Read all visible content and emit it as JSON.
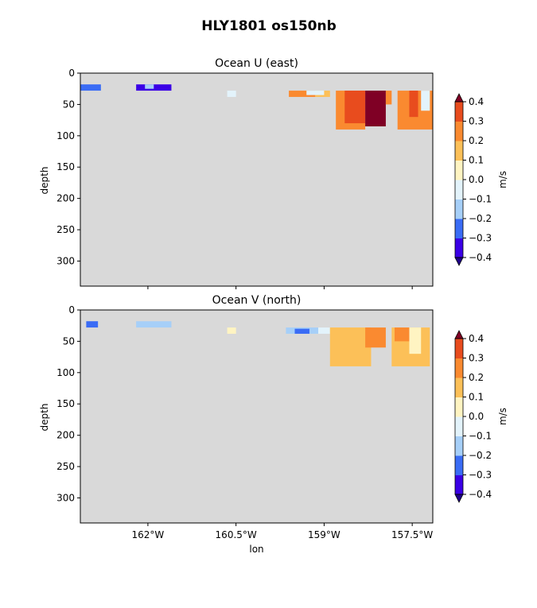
{
  "figure": {
    "title": "HLY1801 os150nb"
  },
  "chart_data": [
    {
      "type": "heatmap",
      "title": "Ocean U (east)",
      "xlabel": "",
      "ylabel": "depth",
      "xlim": [
        -163.15,
        -157.15
      ],
      "ylim": [
        340,
        0
      ],
      "yticks": [
        0,
        50,
        100,
        150,
        200,
        250,
        300
      ],
      "xticks": [
        -162.0,
        -160.5,
        -159.0,
        -157.5
      ],
      "xtick_labels": [
        "",
        "",
        "",
        ""
      ],
      "background_color": "#d9d9d9",
      "colorbar": {
        "label": "m/s",
        "levels": [
          -0.4,
          -0.3,
          -0.2,
          -0.1,
          0.0,
          0.1,
          0.2,
          0.3,
          0.4
        ],
        "tick_labels": [
          "−0.4",
          "−0.3",
          "−0.2",
          "−0.1",
          "0.0",
          "0.1",
          "0.2",
          "0.3",
          "0.4"
        ],
        "colors": [
          "#3a00e6",
          "#3a6cf5",
          "#a6cff8",
          "#e3f3fb",
          "#fff4c2",
          "#fcc058",
          "#fa8a30",
          "#e84c1e"
        ],
        "under_color": "#1f0089",
        "over_color": "#7f0025"
      },
      "regions": [
        {
          "value": -0.25,
          "lon": [
            -163.15,
            -162.8
          ],
          "depth": [
            18,
            28
          ]
        },
        {
          "value": -0.35,
          "lon": [
            -162.2,
            -161.6
          ],
          "depth": [
            18,
            28
          ]
        },
        {
          "value": -0.15,
          "lon": [
            -162.05,
            -161.9
          ],
          "depth": [
            18,
            25
          ]
        },
        {
          "value": -0.05,
          "lon": [
            -160.65,
            -160.5
          ],
          "depth": [
            28,
            38
          ]
        },
        {
          "value": 0.25,
          "lon": [
            -159.6,
            -159.15
          ],
          "depth": [
            28,
            38
          ]
        },
        {
          "value": 0.15,
          "lon": [
            -159.15,
            -158.9
          ],
          "depth": [
            28,
            38
          ]
        },
        {
          "value": -0.05,
          "lon": [
            -159.3,
            -159.0
          ],
          "depth": [
            28,
            35
          ]
        },
        {
          "value": 0.25,
          "lon": [
            -158.8,
            -158.3
          ],
          "depth": [
            28,
            90
          ]
        },
        {
          "value": 0.35,
          "lon": [
            -158.65,
            -158.3
          ],
          "depth": [
            28,
            80
          ]
        },
        {
          "value": 0.45,
          "lon": [
            -158.3,
            -157.95
          ],
          "depth": [
            28,
            85
          ]
        },
        {
          "value": 0.25,
          "lon": [
            -157.95,
            -157.85
          ],
          "depth": [
            28,
            50
          ]
        },
        {
          "value": 0.25,
          "lon": [
            -157.75,
            -157.15
          ],
          "depth": [
            28,
            90
          ]
        },
        {
          "value": 0.35,
          "lon": [
            -157.55,
            -157.4
          ],
          "depth": [
            28,
            70
          ]
        },
        {
          "value": -0.05,
          "lon": [
            -157.35,
            -157.2
          ],
          "depth": [
            28,
            60
          ]
        }
      ]
    },
    {
      "type": "heatmap",
      "title": "Ocean V (north)",
      "xlabel": "lon",
      "ylabel": "depth",
      "xlim": [
        -163.15,
        -157.15
      ],
      "ylim": [
        340,
        0
      ],
      "yticks": [
        0,
        50,
        100,
        150,
        200,
        250,
        300
      ],
      "xticks": [
        -162.0,
        -160.5,
        -159.0,
        -157.5
      ],
      "xtick_labels": [
        "162°W",
        "160.5°W",
        "159°W",
        "157.5°W"
      ],
      "background_color": "#d9d9d9",
      "colorbar": {
        "label": "m/s",
        "levels": [
          -0.4,
          -0.3,
          -0.2,
          -0.1,
          0.0,
          0.1,
          0.2,
          0.3,
          0.4
        ],
        "tick_labels": [
          "−0.4",
          "−0.3",
          "−0.2",
          "−0.1",
          "0.0",
          "0.1",
          "0.2",
          "0.3",
          "0.4"
        ],
        "colors": [
          "#3a00e6",
          "#3a6cf5",
          "#a6cff8",
          "#e3f3fb",
          "#fff4c2",
          "#fcc058",
          "#fa8a30",
          "#e84c1e"
        ],
        "under_color": "#1f0089",
        "over_color": "#7f0025"
      },
      "regions": [
        {
          "value": -0.25,
          "lon": [
            -163.05,
            -162.85
          ],
          "depth": [
            18,
            28
          ]
        },
        {
          "value": -0.15,
          "lon": [
            -162.2,
            -161.6
          ],
          "depth": [
            18,
            28
          ]
        },
        {
          "value": 0.05,
          "lon": [
            -160.65,
            -160.5
          ],
          "depth": [
            28,
            38
          ]
        },
        {
          "value": -0.15,
          "lon": [
            -159.65,
            -159.1
          ],
          "depth": [
            28,
            38
          ]
        },
        {
          "value": -0.25,
          "lon": [
            -159.5,
            -159.25
          ],
          "depth": [
            30,
            38
          ]
        },
        {
          "value": -0.05,
          "lon": [
            -159.1,
            -158.9
          ],
          "depth": [
            28,
            38
          ]
        },
        {
          "value": 0.15,
          "lon": [
            -158.9,
            -158.2
          ],
          "depth": [
            28,
            90
          ]
        },
        {
          "value": 0.25,
          "lon": [
            -158.3,
            -157.95
          ],
          "depth": [
            28,
            60
          ]
        },
        {
          "value": 0.15,
          "lon": [
            -157.85,
            -157.2
          ],
          "depth": [
            28,
            90
          ]
        },
        {
          "value": 0.25,
          "lon": [
            -157.8,
            -157.55
          ],
          "depth": [
            28,
            50
          ]
        },
        {
          "value": 0.05,
          "lon": [
            -157.55,
            -157.35
          ],
          "depth": [
            28,
            70
          ]
        }
      ]
    }
  ]
}
